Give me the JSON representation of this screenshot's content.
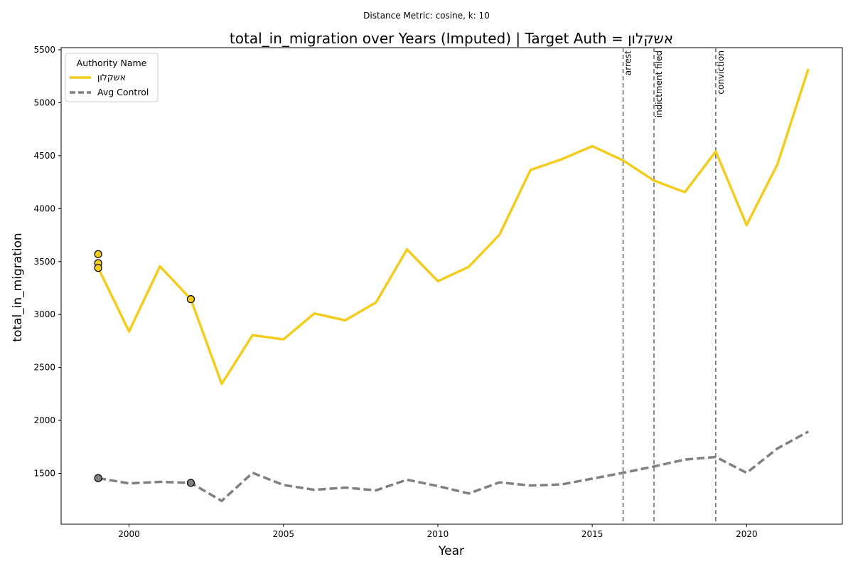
{
  "chart_data": {
    "type": "line",
    "subtitle": "Distance Metric: cosine, k: 10",
    "title": "total_in_migration over Years (Imputed) | Target Auth = אשקלון",
    "xlabel": "Year",
    "ylabel": "total_in_migration",
    "xlim": [
      1997.8,
      2023.1
    ],
    "ylim": [
      1020,
      5520
    ],
    "x_ticks": [
      2000,
      2005,
      2010,
      2015,
      2020
    ],
    "y_ticks": [
      1500,
      2000,
      2500,
      3000,
      3500,
      4000,
      4500,
      5000,
      5500
    ],
    "grid": false,
    "legend": {
      "title": "Authority Name",
      "placement": "top-left"
    },
    "x": [
      1999,
      2000,
      2001,
      2002,
      2003,
      2004,
      2005,
      2006,
      2007,
      2008,
      2009,
      2010,
      2011,
      2012,
      2013,
      2014,
      2015,
      2016,
      2017,
      2018,
      2019,
      2020,
      2021,
      2022
    ],
    "series": [
      {
        "name": "אשקלון",
        "color": "#F2CD20",
        "style": "solid",
        "values": [
          3440,
          2840,
          3455,
          3145,
          2345,
          2805,
          2765,
          3010,
          2945,
          3115,
          3615,
          3315,
          3450,
          3755,
          4365,
          4465,
          4590,
          4455,
          4265,
          4155,
          4540,
          3845,
          4420,
          5320
        ],
        "imputed_points": [
          {
            "x": 1999,
            "y": 3570
          },
          {
            "x": 1999,
            "y": 3485
          },
          {
            "x": 1999,
            "y": 3440
          },
          {
            "x": 2002,
            "y": 3145
          }
        ]
      },
      {
        "name": "Avg Control",
        "color": "#808080",
        "style": "dashed",
        "values": [
          1455,
          1405,
          1420,
          1410,
          1240,
          1505,
          1390,
          1345,
          1365,
          1340,
          1440,
          1380,
          1310,
          1415,
          1385,
          1395,
          1450,
          1505,
          1565,
          1630,
          1655,
          1505,
          1735,
          1895
        ],
        "imputed_points": [
          {
            "x": 1999,
            "y": 1455
          },
          {
            "x": 2002,
            "y": 1410
          }
        ]
      }
    ],
    "events": [
      {
        "x": 2016,
        "label": "arrest"
      },
      {
        "x": 2017,
        "label": "indictment filed"
      },
      {
        "x": 2019,
        "label": "conviction"
      }
    ]
  }
}
